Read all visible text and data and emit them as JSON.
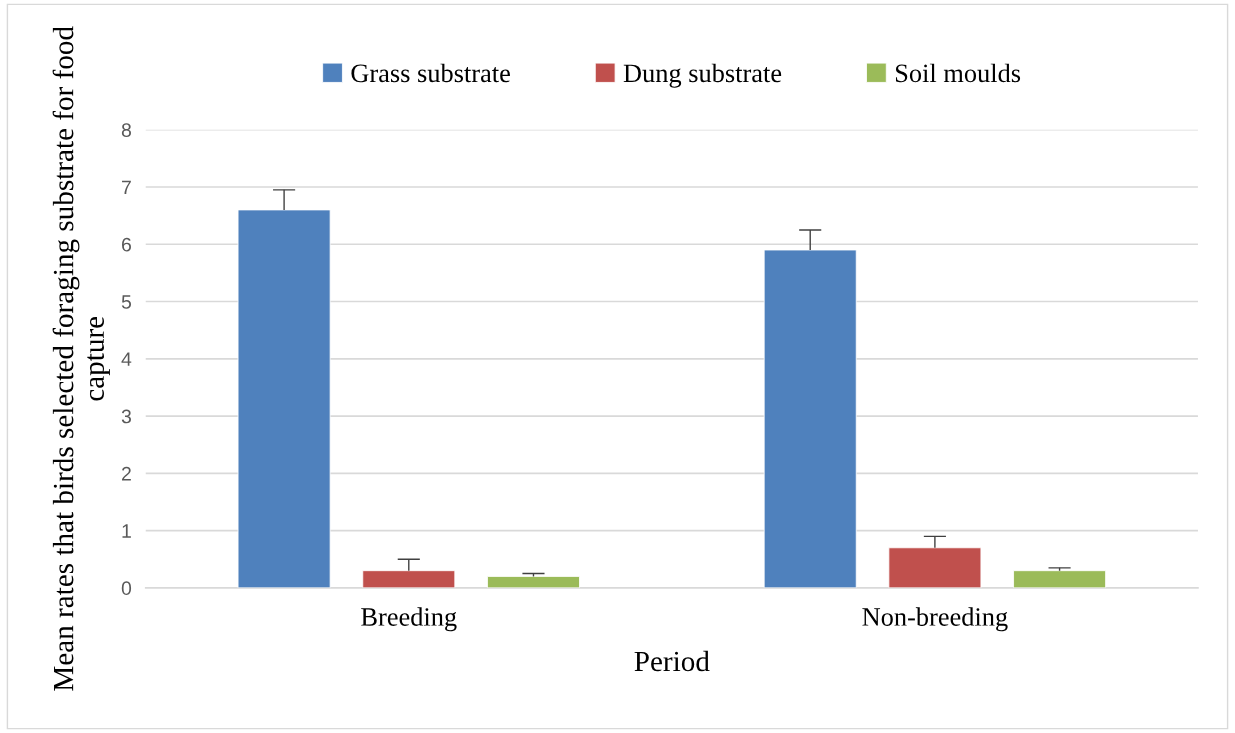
{
  "chart_data": {
    "type": "bar",
    "xlabel": "Period",
    "ylabel": "Mean rates that birds selected foraging substrate for food capture",
    "categories": [
      "Breeding",
      "Non-breeding"
    ],
    "series": [
      {
        "name": "Grass substrate",
        "color": "#4f81bd",
        "values": [
          6.6,
          5.9
        ],
        "errors": [
          [
            6.6,
            6.95
          ],
          [
            5.9,
            6.25
          ]
        ]
      },
      {
        "name": "Dung substrate",
        "color": "#c0504d",
        "values": [
          0.3,
          0.7
        ],
        "errors": [
          [
            0.3,
            0.5
          ],
          [
            0.7,
            0.9
          ]
        ]
      },
      {
        "name": "Soil moulds",
        "color": "#9bbb59",
        "values": [
          0.2,
          0.3
        ],
        "errors": [
          [
            0.2,
            0.25
          ],
          [
            0.3,
            0.35
          ]
        ]
      }
    ],
    "ylim": [
      0,
      8
    ],
    "yticks": [
      0,
      1,
      2,
      3,
      4,
      5,
      6,
      7,
      8
    ],
    "grid": "y",
    "legend": "top"
  }
}
